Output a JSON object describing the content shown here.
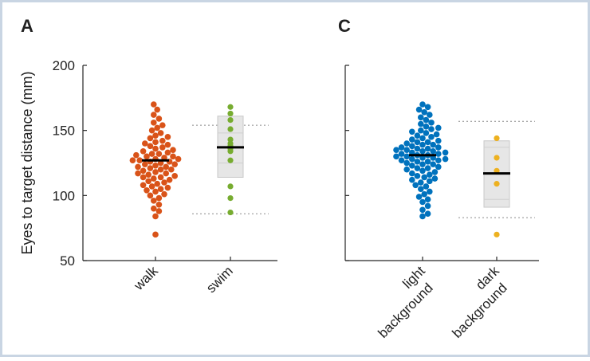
{
  "figure": {
    "frame_color": "#c9d5e3",
    "axis_color": "#262626",
    "range_line_color": "#8c8c8c",
    "box_fill": "#e6e6e6",
    "box_stroke": "#c8c8c8",
    "mean_color": "#000000"
  },
  "chart_data": [
    {
      "type": "scatter",
      "panel_label": "A",
      "ylabel": "Eyes to target distance (mm)",
      "ylim": [
        50,
        200
      ],
      "yticks": [
        50,
        100,
        150,
        200
      ],
      "categories": [
        "walk",
        "swim"
      ],
      "grid": false,
      "series": [
        {
          "name": "walk",
          "color": "#d95319",
          "style": "beeswarm",
          "mean": 127,
          "values": [
            70,
            84,
            88,
            90,
            93,
            96,
            98,
            100,
            101,
            103,
            104,
            105,
            106,
            107,
            108,
            109,
            110,
            111,
            112,
            113,
            114,
            114,
            115,
            116,
            117,
            117,
            118,
            119,
            120,
            120,
            121,
            122,
            122,
            123,
            124,
            124,
            125,
            126,
            126,
            127,
            127,
            128,
            128,
            129,
            130,
            130,
            131,
            132,
            132,
            133,
            134,
            135,
            136,
            137,
            138,
            139,
            140,
            141,
            142,
            144,
            145,
            146,
            148,
            150,
            152,
            154,
            156,
            159,
            162,
            166,
            170
          ]
        },
        {
          "name": "swim",
          "color": "#77ac30",
          "style": "points",
          "mean": 137,
          "box": [
            114,
            161
          ],
          "inner_lines": [
            125,
            148
          ],
          "range_lines": [
            86,
            154
          ],
          "values": [
            87,
            98,
            107,
            127,
            134,
            136,
            138,
            140,
            143,
            151,
            158,
            163,
            168
          ]
        }
      ]
    },
    {
      "type": "scatter",
      "panel_label": "C",
      "ylim": [
        50,
        200
      ],
      "categories": [
        "light background",
        "dark background"
      ],
      "grid": false,
      "series": [
        {
          "name": "light background",
          "color": "#0072bd",
          "style": "beeswarm",
          "mean": 131,
          "values": [
            84,
            86,
            89,
            92,
            95,
            97,
            99,
            101,
            103,
            105,
            107,
            108,
            110,
            111,
            112,
            113,
            114,
            115,
            116,
            117,
            118,
            119,
            120,
            121,
            121,
            122,
            123,
            124,
            124,
            125,
            126,
            126,
            127,
            127,
            128,
            128,
            129,
            129,
            130,
            130,
            131,
            131,
            132,
            132,
            133,
            133,
            134,
            134,
            135,
            135,
            136,
            136,
            137,
            137,
            138,
            139,
            139,
            140,
            141,
            141,
            142,
            143,
            144,
            145,
            146,
            147,
            148,
            149,
            150,
            151,
            152,
            153,
            155,
            156,
            158,
            160,
            162,
            164,
            166,
            168,
            170
          ]
        },
        {
          "name": "dark background",
          "color": "#edb120",
          "style": "points",
          "mean": 117,
          "box": [
            91,
            142
          ],
          "inner_lines": [
            97,
            137
          ],
          "range_lines": [
            83,
            157
          ],
          "values": [
            70,
            109,
            119,
            129,
            144
          ]
        }
      ]
    }
  ]
}
